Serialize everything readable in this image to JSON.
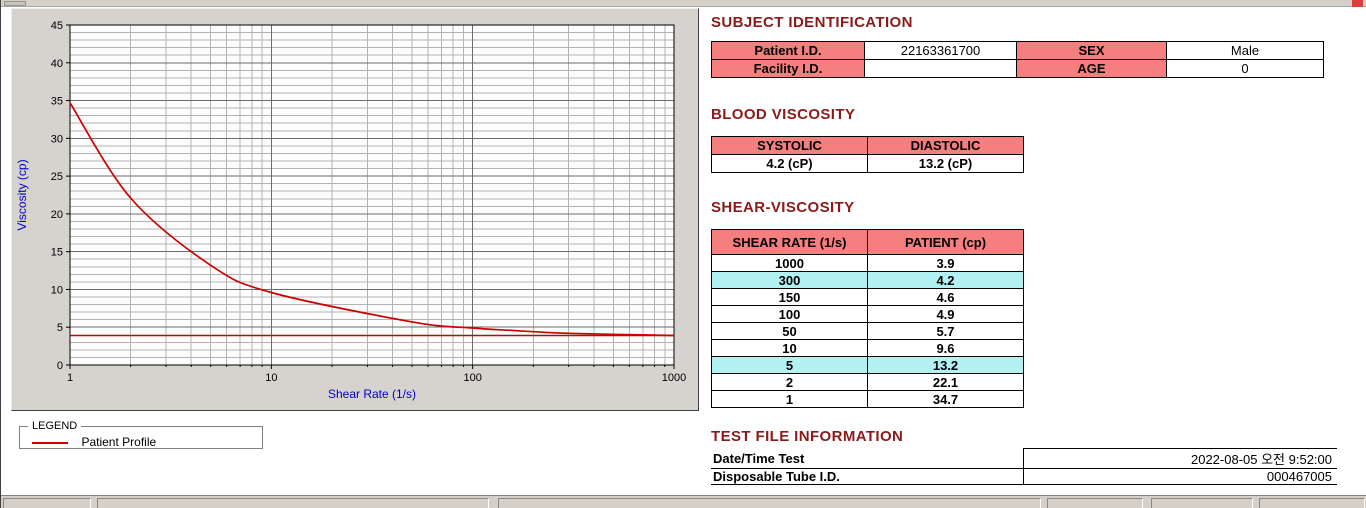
{
  "colors": {
    "heading_maroon": "#8b1a1a",
    "table_header_pink": "#f57f7f",
    "highlight_cyan": "#b2f2f2",
    "chart_line_red": "#cc0000",
    "axis_label_blue": "#0000c8"
  },
  "legend": {
    "title": "LEGEND",
    "series": "Patient Profile"
  },
  "subject": {
    "title": "SUBJECT IDENTIFICATION",
    "rows": [
      [
        "Patient I.D.",
        "22163361700",
        "SEX",
        "Male"
      ],
      [
        "Facility I.D.",
        "",
        "AGE",
        "0"
      ]
    ]
  },
  "blood_viscosity": {
    "title": "BLOOD VISCOSITY",
    "headers": [
      "SYSTOLIC",
      "DIASTOLIC"
    ],
    "values": [
      "4.2 (cP)",
      "13.2 (cP)"
    ]
  },
  "shear_viscosity": {
    "title": "SHEAR-VISCOSITY",
    "headers": [
      "SHEAR RATE (1/s)",
      "PATIENT (cp)"
    ],
    "rows": [
      {
        "rate": "1000",
        "value": "3.9",
        "highlight": false
      },
      {
        "rate": "300",
        "value": "4.2",
        "highlight": true
      },
      {
        "rate": "150",
        "value": "4.6",
        "highlight": false
      },
      {
        "rate": "100",
        "value": "4.9",
        "highlight": false
      },
      {
        "rate": "50",
        "value": "5.7",
        "highlight": false
      },
      {
        "rate": "10",
        "value": "9.6",
        "highlight": false
      },
      {
        "rate": "5",
        "value": "13.2",
        "highlight": true
      },
      {
        "rate": "2",
        "value": "22.1",
        "highlight": false
      },
      {
        "rate": "1",
        "value": "34.7",
        "highlight": false
      }
    ]
  },
  "test_file": {
    "title": "TEST FILE INFORMATION",
    "rows": [
      {
        "label": "Date/Time Test",
        "value": "2022-08-05  오전 9:52:00"
      },
      {
        "label": "Disposable Tube I.D.",
        "value": "000467005"
      }
    ]
  },
  "chart_data": {
    "type": "line",
    "title": "",
    "xlabel": "Shear Rate (1/s)",
    "ylabel": "Viscosity (cp)",
    "xscale": "log",
    "xlim": [
      1,
      1000
    ],
    "ylim": [
      0,
      45
    ],
    "xticks": [
      1,
      10,
      100,
      1000
    ],
    "yticks": [
      0,
      5,
      10,
      15,
      20,
      25,
      30,
      35,
      40,
      45
    ],
    "grid": "major+minor",
    "legend_position": "below",
    "x": [
      1,
      2,
      5,
      10,
      50,
      100,
      150,
      300,
      1000
    ],
    "series": [
      {
        "name": "Patient Profile",
        "values": [
          34.7,
          22.1,
          13.2,
          9.6,
          5.7,
          4.9,
          4.6,
          4.2,
          3.9
        ]
      }
    ],
    "baseline": 3.9,
    "line_color": "#cc0000"
  }
}
